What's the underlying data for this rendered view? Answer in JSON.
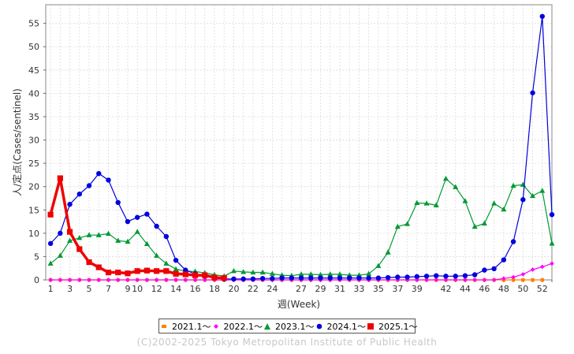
{
  "chart_data": {
    "type": "line",
    "xlabel": "週(Week)",
    "ylabel": "人/定点(Cases/sentinel)",
    "xlim": [
      0.5,
      53
    ],
    "ylim": [
      0,
      59
    ],
    "x_ticks": [
      1,
      3,
      5,
      7,
      9,
      10,
      12,
      14,
      16,
      18,
      20,
      22,
      24,
      27,
      29,
      31,
      33,
      35,
      37,
      39,
      42,
      44,
      46,
      48,
      50,
      52
    ],
    "y_ticks": [
      0,
      5,
      10,
      15,
      20,
      25,
      30,
      35,
      40,
      45,
      50,
      55
    ],
    "grid": true,
    "legend_position": "bottom",
    "series": [
      {
        "name": "2021.1～",
        "color": "#ff8000",
        "marker": "square",
        "values": [
          0,
          0,
          0,
          0,
          0,
          0,
          0,
          0,
          0,
          0,
          0,
          0,
          0,
          0,
          0,
          0,
          0,
          0,
          0,
          0,
          0,
          0,
          0,
          0,
          0,
          0,
          0,
          0,
          0,
          0,
          0,
          0,
          0,
          0,
          0,
          0,
          0,
          0,
          0,
          0,
          0,
          0,
          0,
          0,
          0,
          0,
          0,
          0,
          0,
          0,
          0,
          0
        ]
      },
      {
        "name": "2022.1～",
        "color": "#ff00ff",
        "marker": "diamond",
        "values": [
          0,
          0,
          0,
          0,
          0,
          0,
          0,
          0,
          0,
          0,
          0,
          0,
          0,
          0,
          0,
          0,
          0,
          0,
          0,
          0,
          0,
          0,
          0,
          0,
          0,
          0,
          0,
          0,
          0,
          0,
          0,
          0,
          0,
          0,
          0,
          0,
          0,
          0,
          0,
          0,
          0,
          0,
          0,
          0,
          0,
          0,
          0,
          0.3,
          0.6,
          1.2,
          2.2,
          2.8,
          3.5
        ]
      },
      {
        "name": "2023.1～",
        "color": "#009933",
        "marker": "triangle",
        "values": [
          3.5,
          5.2,
          8.4,
          9.0,
          9.6,
          9.6,
          9.9,
          8.4,
          8.2,
          10.3,
          7.7,
          5.2,
          3.5,
          2.3,
          1.9,
          1.8,
          1.5,
          1.1,
          0.8,
          1.9,
          1.7,
          1.6,
          1.6,
          1.3,
          1.0,
          0.9,
          1.2,
          1.2,
          1.1,
          1.2,
          1.2,
          1.0,
          1.0,
          1.3,
          3.0,
          5.9,
          11.4,
          12.0,
          16.5,
          16.4,
          16.0,
          21.7,
          19.9,
          16.9,
          11.4,
          12.1,
          16.4,
          15.1,
          20.2,
          20.4,
          18.0,
          19.1,
          7.8
        ]
      },
      {
        "name": "2024.1～",
        "color": "#0000dd",
        "marker": "circle",
        "values": [
          7.8,
          10.0,
          16.2,
          18.4,
          20.2,
          22.8,
          21.4,
          16.6,
          12.5,
          13.4,
          14.1,
          11.5,
          9.3,
          4.2,
          2.1,
          1.3,
          0.8,
          0.4,
          0.2,
          0.2,
          0.2,
          0.2,
          0.3,
          0.3,
          0.4,
          0.4,
          0.4,
          0.4,
          0.4,
          0.4,
          0.4,
          0.4,
          0.4,
          0.4,
          0.4,
          0.5,
          0.6,
          0.6,
          0.7,
          0.8,
          0.9,
          0.8,
          0.8,
          0.9,
          1.1,
          2.1,
          2.4,
          4.3,
          8.2,
          17.2,
          40.1,
          56.5,
          14.0
        ]
      },
      {
        "name": "2025.1～",
        "color": "#ee0000",
        "marker": "square",
        "values": [
          14.0,
          21.8,
          10.3,
          6.6,
          3.8,
          2.7,
          1.6,
          1.6,
          1.4,
          1.9,
          2.0,
          1.9,
          1.9,
          1.3,
          1.2,
          1.0,
          1.0,
          0.5,
          0.4
        ]
      }
    ]
  },
  "footer": {
    "credit": "(C)2002-2025 Tokyo Metropolitan Institute of Public Health"
  }
}
